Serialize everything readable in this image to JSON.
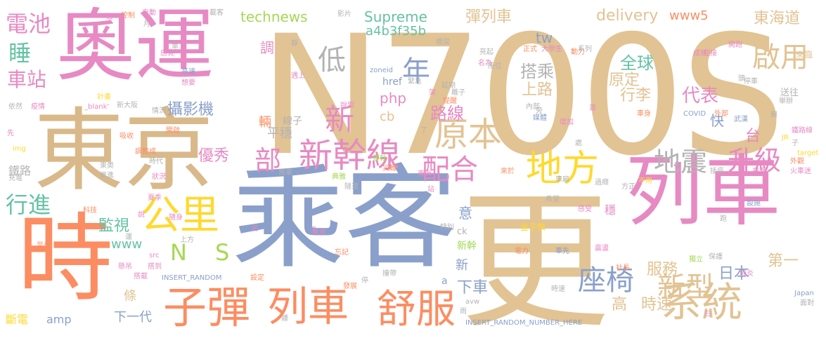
{
  "words": [
    {
      "text": "N700S",
      "color": "#e2c393",
      "vertical": false
    },
    {
      "text": "乘客",
      "color": "#8aa0cb",
      "vertical": false
    },
    {
      "text": "更",
      "color": "#e2c393",
      "vertical": false
    },
    {
      "text": "東京",
      "color": "#d9b98a",
      "vertical": false
    },
    {
      "text": "奧運",
      "color": "#e78ac3",
      "vertical": false
    },
    {
      "text": "時",
      "color": "#fc8d62",
      "vertical": false
    },
    {
      "text": "列車",
      "color": "#e78ac3",
      "vertical": false
    },
    {
      "text": "子彈",
      "color": "#fc8d62",
      "vertical": false
    },
    {
      "text": "列車",
      "color": "#fc8d62",
      "vertical": false
    },
    {
      "text": "舒服",
      "color": "#fc8d62",
      "vertical": false
    },
    {
      "text": "系統",
      "color": "#e2c393",
      "vertical": false
    },
    {
      "text": "新幹線",
      "color": "#e78ac3",
      "vertical": false
    },
    {
      "text": "地方",
      "color": "#ffd92f",
      "vertical": false
    },
    {
      "text": "公里",
      "color": "#ffd92f",
      "vertical": false
    },
    {
      "text": "原本",
      "color": "#e2c393",
      "vertical": false
    },
    {
      "text": "地震",
      "color": "#b3b3b3",
      "vertical": false
    },
    {
      "text": "升級",
      "color": "#e78ac3",
      "vertical": false
    },
    {
      "text": "啟用",
      "color": "#e2c393",
      "vertical": false
    },
    {
      "text": "配合",
      "color": "#e78ac3",
      "vertical": false
    },
    {
      "text": "部",
      "color": "#e78ac3",
      "vertical": false
    },
    {
      "text": "新",
      "color": "#e78ac3",
      "vertical": false
    },
    {
      "text": "低",
      "color": "#b3b3b3",
      "vertical": false
    },
    {
      "text": "年",
      "color": "#8aa0cb",
      "vertical": false
    },
    {
      "text": "座椅",
      "color": "#8aa0cb",
      "vertical": false
    },
    {
      "text": "新型",
      "color": "#e2c393",
      "vertical": false
    },
    {
      "text": "電池",
      "color": "#e78ac3",
      "vertical": false
    },
    {
      "text": "睡",
      "color": "#66c2a5",
      "vertical": false
    },
    {
      "text": "車站",
      "color": "#e78ac3",
      "vertical": false
    },
    {
      "text": "行進",
      "color": "#66c2a5",
      "vertical": false
    },
    {
      "text": "監視",
      "color": "#66c2a5",
      "vertical": false
    },
    {
      "text": "攝影機",
      "color": "#8aa0cb",
      "vertical": false
    },
    {
      "text": "優秀",
      "color": "#e78ac3",
      "vertical": false
    },
    {
      "text": "路線",
      "color": "#e78ac3",
      "vertical": false
    },
    {
      "text": "行李",
      "color": "#e2c393",
      "vertical": false
    },
    {
      "text": "代表",
      "color": "#e78ac3",
      "vertical": false
    },
    {
      "text": "全球",
      "color": "#66c2a5",
      "vertical": false
    },
    {
      "text": "搭乘",
      "color": "#b3b3b3",
      "vertical": false
    },
    {
      "text": "上路",
      "color": "#e2c393",
      "vertical": false
    },
    {
      "text": "原定",
      "color": "#e2c393",
      "vertical": false
    },
    {
      "text": "服務",
      "color": "#e2c393",
      "vertical": false
    },
    {
      "text": "日本",
      "color": "#8aa0cb",
      "vertical": false
    },
    {
      "text": "第一",
      "color": "#e2c393",
      "vertical": false
    },
    {
      "text": "東海道",
      "color": "#e2c393",
      "vertical": false
    },
    {
      "text": "彈列車",
      "color": "#e2c393",
      "vertical": false
    },
    {
      "text": "下車",
      "color": "#8aa0cb",
      "vertical": false
    },
    {
      "text": "時速",
      "color": "#e2c393",
      "vertical": false
    },
    {
      "text": "高",
      "color": "#e2c393",
      "vertical": false
    },
    {
      "text": "下一代",
      "color": "#8aa0cb",
      "vertical": false
    },
    {
      "text": "平穩",
      "color": "#b3b3b3",
      "vertical": false
    },
    {
      "text": "Supreme",
      "color": "#66c2a5",
      "vertical": false
    },
    {
      "text": "technews",
      "color": "#a6d854",
      "vertical": false
    },
    {
      "text": "delivery",
      "color": "#e2c393",
      "vertical": false
    },
    {
      "text": "www5",
      "color": "#fc8d62",
      "vertical": false
    },
    {
      "text": "tw",
      "color": "#8aa0cb",
      "vertical": false
    },
    {
      "text": "a4b3f35b",
      "color": "#66c2a5",
      "vertical": false
    },
    {
      "text": "php",
      "color": "#e78ac3",
      "vertical": false
    },
    {
      "text": "cb",
      "color": "#e2c393",
      "vertical": false
    },
    {
      "text": "www",
      "color": "#66c2a5",
      "vertical": false
    },
    {
      "text": "amp",
      "color": "#8aa0cb",
      "vertical": false
    },
    {
      "text": "N",
      "color": "#a6d854",
      "vertical": false
    },
    {
      "text": "S",
      "color": "#a6d854",
      "vertical": false
    },
    {
      "text": "調",
      "color": "#e78ac3",
      "vertical": false
    },
    {
      "text": "輛",
      "color": "#fc8d62",
      "vertical": false
    },
    {
      "text": "台",
      "color": "#e78ac3",
      "vertical": false
    },
    {
      "text": "快",
      "color": "#8aa0cb",
      "vertical": false
    },
    {
      "text": "條",
      "color": "#e2c393",
      "vertical": false
    },
    {
      "text": "意",
      "color": "#8aa0cb",
      "vertical": false
    },
    {
      "text": "新幹",
      "color": "#a6d854",
      "vertical": false
    },
    {
      "text": "新",
      "color": "#8aa0cb",
      "vertical": false
    },
    {
      "text": "斷電",
      "color": "#ffd92f",
      "vertical": false
    },
    {
      "text": "鐵路",
      "color": "#b3b3b3",
      "vertical": false
    },
    {
      "text": "線子",
      "color": "#b3b3b3",
      "vertical": false
    },
    {
      "text": "送往",
      "color": "#b3b3b3",
      "vertical": false
    },
    {
      "text": "來臨",
      "color": "#e2c393",
      "vertical": false
    },
    {
      "text": "href",
      "color": "#8aa0cb",
      "vertical": false
    },
    {
      "text": "a",
      "color": "#8aa0cb",
      "vertical": false
    },
    {
      "text": "ck",
      "color": "#b3b3b3",
      "vertical": false
    },
    {
      "text": "INSERT_RANDOM",
      "color": "#8aa0cb",
      "vertical": false
    },
    {
      "text": "INSERT_RANDOM_NUMBER_HERE",
      "color": "#8aa0cb",
      "vertical": false
    },
    {
      "text": "zoneid",
      "color": "#8aa0cb",
      "vertical": false
    },
    {
      "text": "COVID",
      "color": "#8aa0cb",
      "vertical": false
    },
    {
      "text": "JR",
      "color": "#ffd92f",
      "vertical": false
    },
    {
      "text": "img",
      "color": "#ffd92f",
      "vertical": false
    },
    {
      "text": "src",
      "color": "#e78ac3",
      "vertical": false
    },
    {
      "text": "target",
      "color": "#ffd92f",
      "vertical": false
    },
    {
      "text": "Japan",
      "color": "#8aa0cb",
      "vertical": false
    },
    {
      "text": "avw",
      "color": "#b3b3b3",
      "vertical": false
    },
    {
      "text": "_blank'",
      "color": "#e78ac3",
      "vertical": false
    },
    {
      "text": "金子慎",
      "color": "#ffd92f",
      "vertical": false
    },
    {
      "text": "世界",
      "color": "#e78ac3",
      "vertical": false
    },
    {
      "text": "發展",
      "color": "#fc8d62",
      "vertical": false
    },
    {
      "text": "電力",
      "color": "#fc8d62",
      "vertical": false
    },
    {
      "text": "車先",
      "color": "#8aa0cb",
      "vertical": false
    },
    {
      "text": "感受",
      "color": "#e78ac3",
      "vertical": false
    },
    {
      "text": "穩",
      "color": "#e78ac3",
      "vertical": false
    },
    {
      "text": "緊急",
      "color": "#b3b3b3",
      "vertical": false
    },
    {
      "text": "災難",
      "color": "#fc8d62",
      "vertical": false
    },
    {
      "text": "蓬勃",
      "color": "#a6d854",
      "vertical": false
    },
    {
      "text": "典雅",
      "color": "#a6d854",
      "vertical": false
    },
    {
      "text": "隧道",
      "color": "#b3b3b3",
      "vertical": false
    },
    {
      "text": "煞車",
      "color": "#b3b3b3",
      "vertical": false
    },
    {
      "text": "狀況",
      "color": "#e78ac3",
      "vertical": false
    },
    {
      "text": "時代",
      "color": "#b3b3b3",
      "vertical": false
    },
    {
      "text": "調整成",
      "color": "#fc8d62",
      "vertical": false
    },
    {
      "text": "情況",
      "color": "#b3b3b3",
      "vertical": false
    },
    {
      "text": "開啟",
      "color": "#fc8d62",
      "vertical": false
    },
    {
      "text": "吸收",
      "color": "#fc8d62",
      "vertical": false
    },
    {
      "text": "依然",
      "color": "#b3b3b3",
      "vertical": false
    },
    {
      "text": "疫情",
      "color": "#e78ac3",
      "vertical": false
    },
    {
      "text": "計畫",
      "color": "#ffd92f",
      "vertical": false
    },
    {
      "text": "想要",
      "color": "#e78ac3",
      "vertical": false
    },
    {
      "text": "高速",
      "color": "#8aa0cb",
      "vertical": false
    },
    {
      "text": "遇上",
      "color": "#e78ac3",
      "vertical": false
    },
    {
      "text": "延期",
      "color": "#b3b3b3",
      "vertical": false
    },
    {
      "text": "離子",
      "color": "#b3b3b3",
      "vertical": false
    },
    {
      "text": "提醒",
      "color": "#fc8d62",
      "vertical": false
    },
    {
      "text": "內部",
      "color": "#b3b3b3",
      "vertical": false
    },
    {
      "text": "媒體",
      "color": "#8aa0cb",
      "vertical": false
    },
    {
      "text": "增加",
      "color": "#e78ac3",
      "vertical": false
    },
    {
      "text": "車身",
      "color": "#fc8d62",
      "vertical": false
    },
    {
      "text": "外部",
      "color": "#fc8d62",
      "vertical": false
    },
    {
      "text": "武漢",
      "color": "#8aa0cb",
      "vertical": false
    },
    {
      "text": "鐵路線",
      "color": "#e78ac3",
      "vertical": false
    },
    {
      "text": "外觀",
      "color": "#fc8d62",
      "vertical": false
    },
    {
      "text": "火車迷",
      "color": "#e78ac3",
      "vertical": false
    },
    {
      "text": "充滿",
      "color": "#e78ac3",
      "vertical": false
    },
    {
      "text": "插座",
      "color": "#b3b3b3",
      "vertical": false
    },
    {
      "text": "設施",
      "color": "#8aa0cb",
      "vertical": false
    },
    {
      "text": "保護",
      "color": "#b3b3b3",
      "vertical": false
    },
    {
      "text": "肺炎",
      "color": "#e78ac3",
      "vertical": false
    },
    {
      "text": "面對",
      "color": "#b3b3b3",
      "vertical": false
    },
    {
      "text": "時速",
      "color": "#b3b3b3",
      "vertical": false
    },
    {
      "text": "社長",
      "color": "#fc8d62",
      "vertical": false
    },
    {
      "text": "獨立",
      "color": "#a6d854",
      "vertical": false
    },
    {
      "text": "震盪",
      "color": "#e78ac3",
      "vertical": false
    },
    {
      "text": "過癮",
      "color": "#b3b3b3",
      "vertical": false
    },
    {
      "text": "車廂",
      "color": "#b3b3b3",
      "vertical": false
    },
    {
      "text": "方正",
      "color": "#b3b3b3",
      "vertical": false
    },
    {
      "text": "不用",
      "color": "#ffd92f",
      "vertical": false
    },
    {
      "text": "希望",
      "color": "#b3b3b3",
      "vertical": false
    },
    {
      "text": "來於",
      "color": "#fc8d62",
      "vertical": false
    },
    {
      "text": "東海",
      "color": "#e78ac3",
      "vertical": false
    },
    {
      "text": "特別",
      "color": "#b3b3b3",
      "vertical": false
    },
    {
      "text": "忘記",
      "color": "#fc8d62",
      "vertical": false
    },
    {
      "text": "撞帶",
      "color": "#b3b3b3",
      "vertical": false
    },
    {
      "text": "設定",
      "color": "#fc8d62",
      "vertical": false
    },
    {
      "text": "夏季",
      "color": "#e78ac3",
      "vertical": false
    },
    {
      "text": "隨身",
      "color": "#e78ac3",
      "vertical": false
    },
    {
      "text": "上方",
      "color": "#b3b3b3",
      "vertical": false
    },
    {
      "text": "懸吊",
      "color": "#e78ac3",
      "vertical": false
    },
    {
      "text": "搭到",
      "color": "#e78ac3",
      "vertical": false
    },
    {
      "text": "搭載",
      "color": "#e78ac3",
      "vertical": false
    },
    {
      "text": "至少",
      "color": "#fc8d62",
      "vertical": false
    },
    {
      "text": "科技",
      "color": "#fc8d62",
      "vertical": false
    },
    {
      "text": "推進",
      "color": "#b3b3b3",
      "vertical": false
    },
    {
      "text": "充電",
      "color": "#b3b3b3",
      "vertical": false
    },
    {
      "text": "東奧",
      "color": "#b3b3b3",
      "vertical": false
    },
    {
      "text": "新大阪",
      "color": "#b3b3b3",
      "vertical": false
    },
    {
      "text": "感覺",
      "color": "#e78ac3",
      "vertical": false
    },
    {
      "text": "自動",
      "color": "#e78ac3",
      "vertical": false
    },
    {
      "text": "控制",
      "color": "#fc8d62",
      "vertical": false
    },
    {
      "text": "載客",
      "color": "#b3b3b3",
      "vertical": false
    },
    {
      "text": "影片",
      "color": "#b3b3b3",
      "vertical": false
    },
    {
      "text": "亮起",
      "color": "#b3b3b3",
      "vertical": false
    },
    {
      "text": "名為",
      "color": "#e78ac3",
      "vertical": false
    },
    {
      "text": "大學生",
      "color": "#e78ac3",
      "vertical": false
    },
    {
      "text": "動力",
      "color": "#fc8d62",
      "vertical": false
    },
    {
      "text": "迎接",
      "color": "#e78ac3",
      "vertical": false
    },
    {
      "text": "開跑",
      "color": "#e78ac3",
      "vertical": false
    },
    {
      "text": "成就",
      "color": "#e78ac3",
      "vertical": false
    },
    {
      "text": "停車",
      "color": "#b3b3b3",
      "vertical": false
    },
    {
      "text": "舉辦",
      "color": "#b3b3b3",
      "vertical": false
    },
    {
      "text": "正式",
      "color": "#fc8d62",
      "vertical": false
    },
    {
      "text": "系列",
      "color": "#b3b3b3",
      "vertical": false
    },
    {
      "text": "座位",
      "color": "#b3b3b3",
      "vertical": false
    },
    {
      "text": "橋梁",
      "color": "#b3b3b3",
      "vertical": false
    },
    {
      "text": "說到",
      "color": "#e78ac3",
      "vertical": false
    },
    {
      "text": "旁",
      "color": "#b3b3b3",
      "vertical": false
    },
    {
      "text": "首",
      "color": "#e78ac3",
      "vertical": false
    },
    {
      "text": "處",
      "color": "#b3b3b3",
      "vertical": false
    },
    {
      "text": "站",
      "color": "#e78ac3",
      "vertical": false
    },
    {
      "text": "架",
      "color": "#e78ac3",
      "vertical": false
    },
    {
      "text": "先",
      "color": "#e78ac3",
      "vertical": false
    },
    {
      "text": "說",
      "color": "#e78ac3",
      "vertical": false
    },
    {
      "text": "運",
      "color": "#b3b3b3",
      "vertical": false
    },
    {
      "text": "全",
      "color": "#e78ac3",
      "vertical": false
    },
    {
      "text": "名",
      "color": "#e78ac3",
      "vertical": false
    },
    {
      "text": "停",
      "color": "#b3b3b3",
      "vertical": false
    },
    {
      "text": "雨",
      "color": "#b3b3b3",
      "vertical": false
    },
    {
      "text": "鍾",
      "color": "#b3b3b3",
      "vertical": false
    },
    {
      "text": "日",
      "color": "#e78ac3",
      "vertical": false
    },
    {
      "text": "跑",
      "color": "#b3b3b3",
      "vertical": false
    },
    {
      "text": "子",
      "color": "#b3b3b3",
      "vertical": false
    },
    {
      "text": "頭",
      "color": "#b3b3b3",
      "vertical": false
    },
    {
      "text": "輿",
      "color": "#b3b3b3",
      "vertical": false
    },
    {
      "text": "怕",
      "color": "#e78ac3",
      "vertical": false
    },
    {
      "text": "月",
      "color": "#b3b3b3",
      "vertical": false
    },
    {
      "text": "靜",
      "color": "#b3b3b3",
      "vertical": false
    },
    {
      "text": "車",
      "color": "#b3b3b3",
      "vertical": false
    },
    {
      "text": "了",
      "color": "#b3b3b3",
      "vertical": false
    }
  ]
}
